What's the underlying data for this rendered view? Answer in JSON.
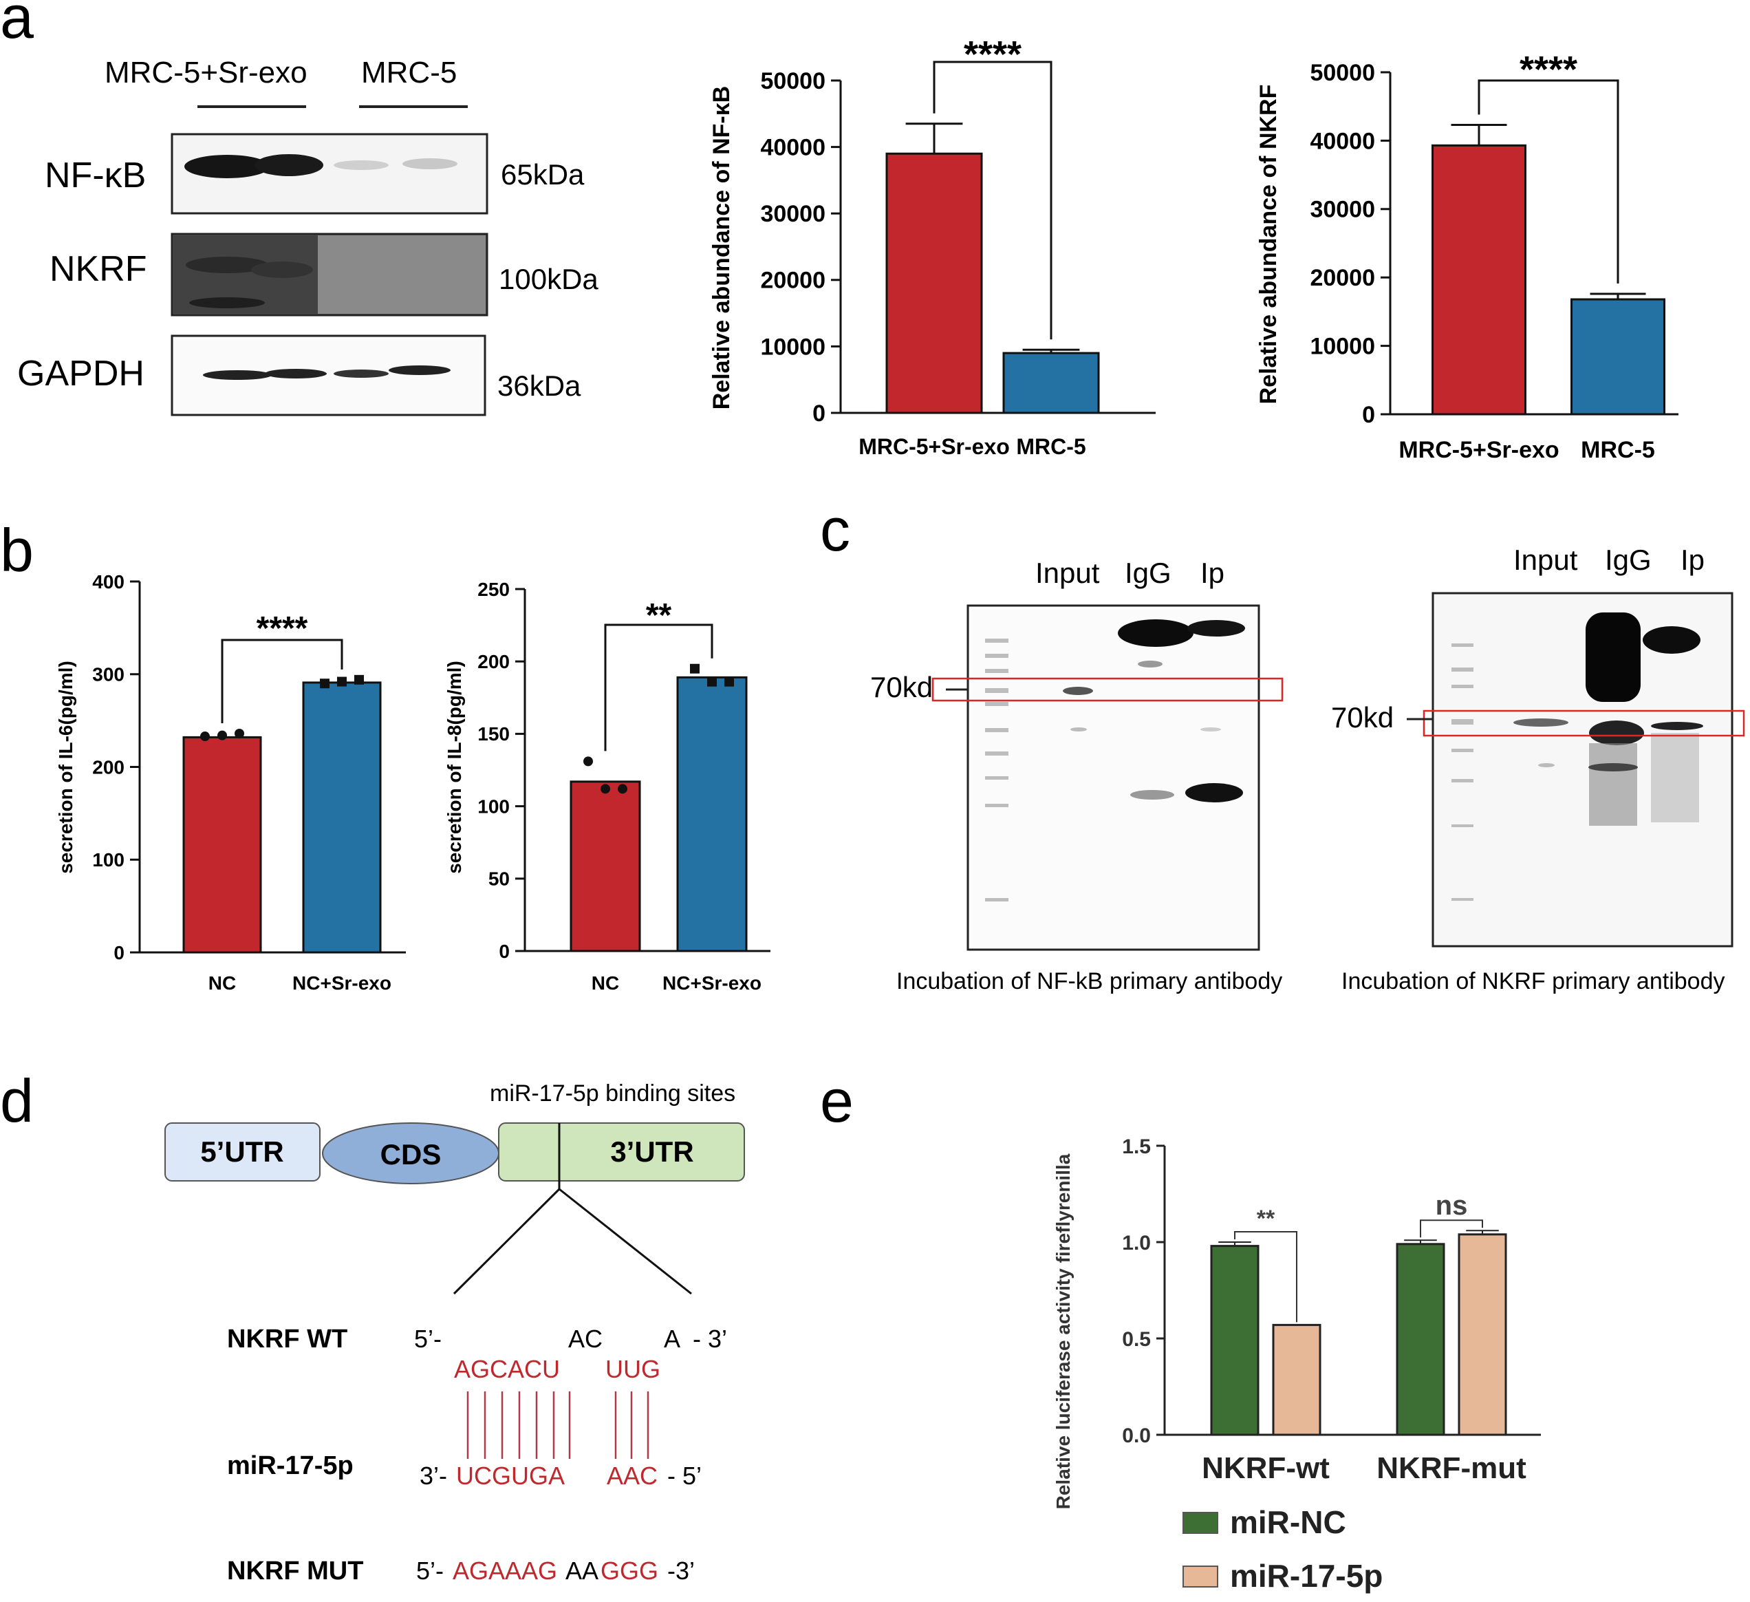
{
  "panels": {
    "a": "a",
    "b": "b",
    "c": "c",
    "d": "d",
    "e": "e"
  },
  "panel_a_blot": {
    "groups": [
      "MRC-5+Sr-exo",
      "MRC-5"
    ],
    "rows": [
      {
        "label": "NF-κB",
        "kda": "65kDa"
      },
      {
        "label": "NKRF",
        "kda": "100kDa"
      },
      {
        "label": "GAPDH",
        "kda": "36kDa"
      }
    ]
  },
  "chart_data": [
    {
      "id": "a_nfkb",
      "type": "bar",
      "categories": [
        "MRC-5+Sr-exo",
        "MRC-5"
      ],
      "values": [
        39000,
        9000
      ],
      "errors": [
        4500,
        500
      ],
      "colors": [
        "#c1272d",
        "#2471a3"
      ],
      "ylabel": "Relative abundance of NF-κB",
      "ylim": [
        0,
        50000
      ],
      "yticks": [
        0,
        10000,
        20000,
        30000,
        40000,
        50000
      ],
      "yticklabels": [
        "0",
        "10000",
        "20000",
        "30000",
        "40000",
        "50000"
      ],
      "significance": "****"
    },
    {
      "id": "a_nkrf",
      "type": "bar",
      "categories": [
        "MRC-5+Sr-exo",
        "MRC-5"
      ],
      "values": [
        39300,
        16800
      ],
      "errors": [
        3000,
        800
      ],
      "colors": [
        "#c1272d",
        "#2471a3"
      ],
      "ylabel": "Relative abundance of NKRF",
      "ylim": [
        0,
        50000
      ],
      "yticks": [
        0,
        10000,
        20000,
        30000,
        40000,
        50000
      ],
      "yticklabels": [
        "0",
        "10000",
        "20000",
        "30000",
        "40000",
        "50000"
      ],
      "significance": "****"
    },
    {
      "id": "b_il6",
      "type": "bar",
      "categories": [
        "NC",
        "NC+Sr-exo"
      ],
      "values": [
        232,
        291
      ],
      "points": [
        [
          233,
          234,
          236
        ],
        [
          290,
          292,
          294
        ]
      ],
      "colors": [
        "#c1272d",
        "#2471a3"
      ],
      "ylabel": "secretion of IL-6(pg/ml)",
      "ylim": [
        0,
        400
      ],
      "yticks": [
        0,
        100,
        200,
        300,
        400
      ],
      "yticklabels": [
        "0",
        "100",
        "200",
        "300",
        "400"
      ],
      "significance": "****"
    },
    {
      "id": "b_il8",
      "type": "bar",
      "categories": [
        "NC",
        "NC+Sr-exo"
      ],
      "values": [
        117,
        189
      ],
      "points": [
        [
          131,
          112,
          112
        ],
        [
          195,
          186,
          186
        ]
      ],
      "colors": [
        "#c1272d",
        "#2471a3"
      ],
      "ylabel": "secretion of IL-8(pg/ml)",
      "ylim": [
        0,
        250
      ],
      "yticks": [
        0,
        50,
        100,
        150,
        200,
        250
      ],
      "yticklabels": [
        "0",
        "50",
        "100",
        "150",
        "200",
        "250"
      ],
      "significance": "**"
    },
    {
      "id": "e_luc",
      "type": "bar",
      "categories": [
        "NKRF-wt",
        "NKRF-mut"
      ],
      "series": [
        {
          "name": "miR-NC",
          "values": [
            0.98,
            0.99
          ],
          "errors": [
            0.02,
            0.02
          ],
          "color": "#3d6e34"
        },
        {
          "name": "miR-17-5p",
          "values": [
            0.57,
            1.04
          ],
          "errors": [
            0.0,
            0.02
          ],
          "color": "#e6b898"
        }
      ],
      "ylabel": "Relative luciferase activity fireflyrenilla",
      "ylim": [
        0,
        1.5
      ],
      "yticks": [
        0,
        0.5,
        1.0,
        1.5
      ],
      "yticklabels": [
        "0.0",
        "0.5",
        "1.0",
        "1.5"
      ],
      "significance": [
        "**",
        "ns"
      ]
    }
  ],
  "panel_c": {
    "left": {
      "lanes": [
        "Input",
        "IgG",
        "Ip"
      ],
      "marker": "70kd",
      "caption": "Incubation of NF-kB primary antibody"
    },
    "right": {
      "lanes": [
        "Input",
        "IgG",
        "Ip"
      ],
      "marker": "70kd",
      "caption": "Incubation of NKRF primary antibody"
    }
  },
  "panel_d": {
    "binding_title": "miR-17-5p binding sites",
    "segments": [
      "5’UTR",
      "CDS",
      "3’UTR"
    ],
    "wt_label": "NKRF WT",
    "wt_prefix": "5’-",
    "wt_mid": "AC",
    "wt_suffix": "A  - 3’",
    "wt_red1": "AGCACU",
    "wt_red2": "UUG",
    "mir_label": "miR-17-5p",
    "mir_prefix": "3’-",
    "mir_red1": "UCGUGA",
    "mir_red2": "AAC",
    "mir_suffix": "- 5’",
    "mut_label": "NKRF MUT",
    "mut_prefix": "5’-",
    "mut_red1": "AGAAAG",
    "mut_black": "AA",
    "mut_red2": "GGG",
    "mut_suffix": "-3’"
  },
  "colors": {
    "red": "#c1272d",
    "blue": "#2471a3",
    "green": "#3d6e34",
    "peach": "#e6b898",
    "seq_red": "#c0282d"
  }
}
